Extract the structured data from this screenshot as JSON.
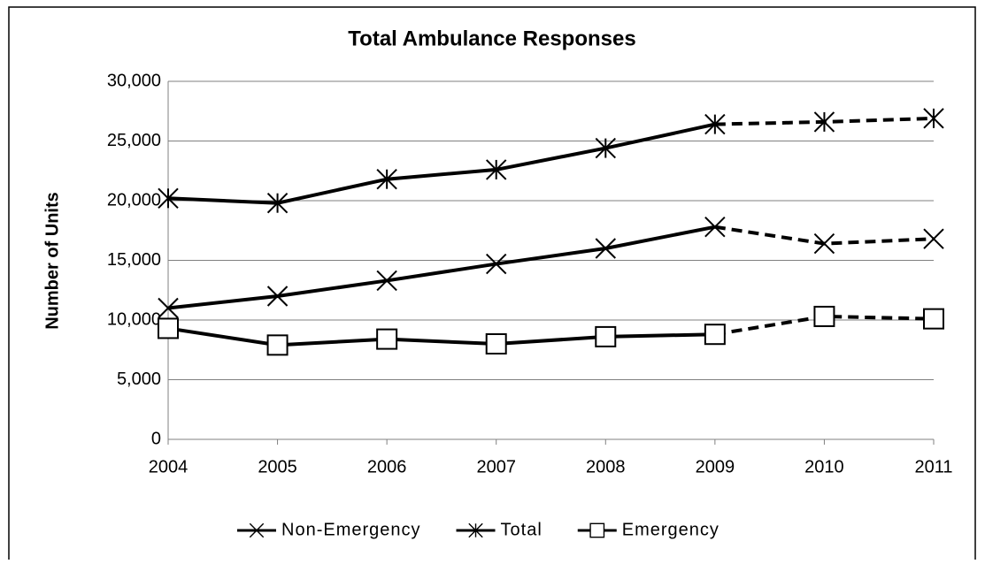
{
  "chart_data": {
    "type": "line",
    "title": "Total Ambulance Responses",
    "y_label": "Number of Units",
    "categories": [
      "2004",
      "2005",
      "2006",
      "2007",
      "2008",
      "2009",
      "2010",
      "2011"
    ],
    "series": [
      {
        "name": "Non-Emergency",
        "color": "#000000",
        "marker": "x",
        "values": [
          11000,
          12000,
          13300,
          14700,
          16000,
          17800,
          16400,
          16800
        ]
      },
      {
        "name": "Total",
        "color": "#000000",
        "marker": "asterisk",
        "values": [
          20200,
          19800,
          21800,
          22600,
          24400,
          26400,
          26600,
          26900
        ]
      },
      {
        "name": "Emergency",
        "color": "#000000",
        "marker": "square",
        "values": [
          9300,
          7900,
          8400,
          8000,
          8600,
          8800,
          10300,
          10100
        ]
      }
    ],
    "dashed_from": "2009",
    "ylim": [
      0,
      30000
    ],
    "yticks": [
      0,
      {
        "value": 5000,
        "label": "5,000"
      },
      {
        "value": 10000,
        "label": "10,000"
      },
      {
        "value": 15000,
        "label": "15,000"
      },
      {
        "value": 20000,
        "label": "20,000"
      },
      {
        "value": 25000,
        "label": "25,000"
      },
      {
        "value": 30000,
        "label": "30,000"
      }
    ],
    "grid": true,
    "legend": "bottom"
  }
}
